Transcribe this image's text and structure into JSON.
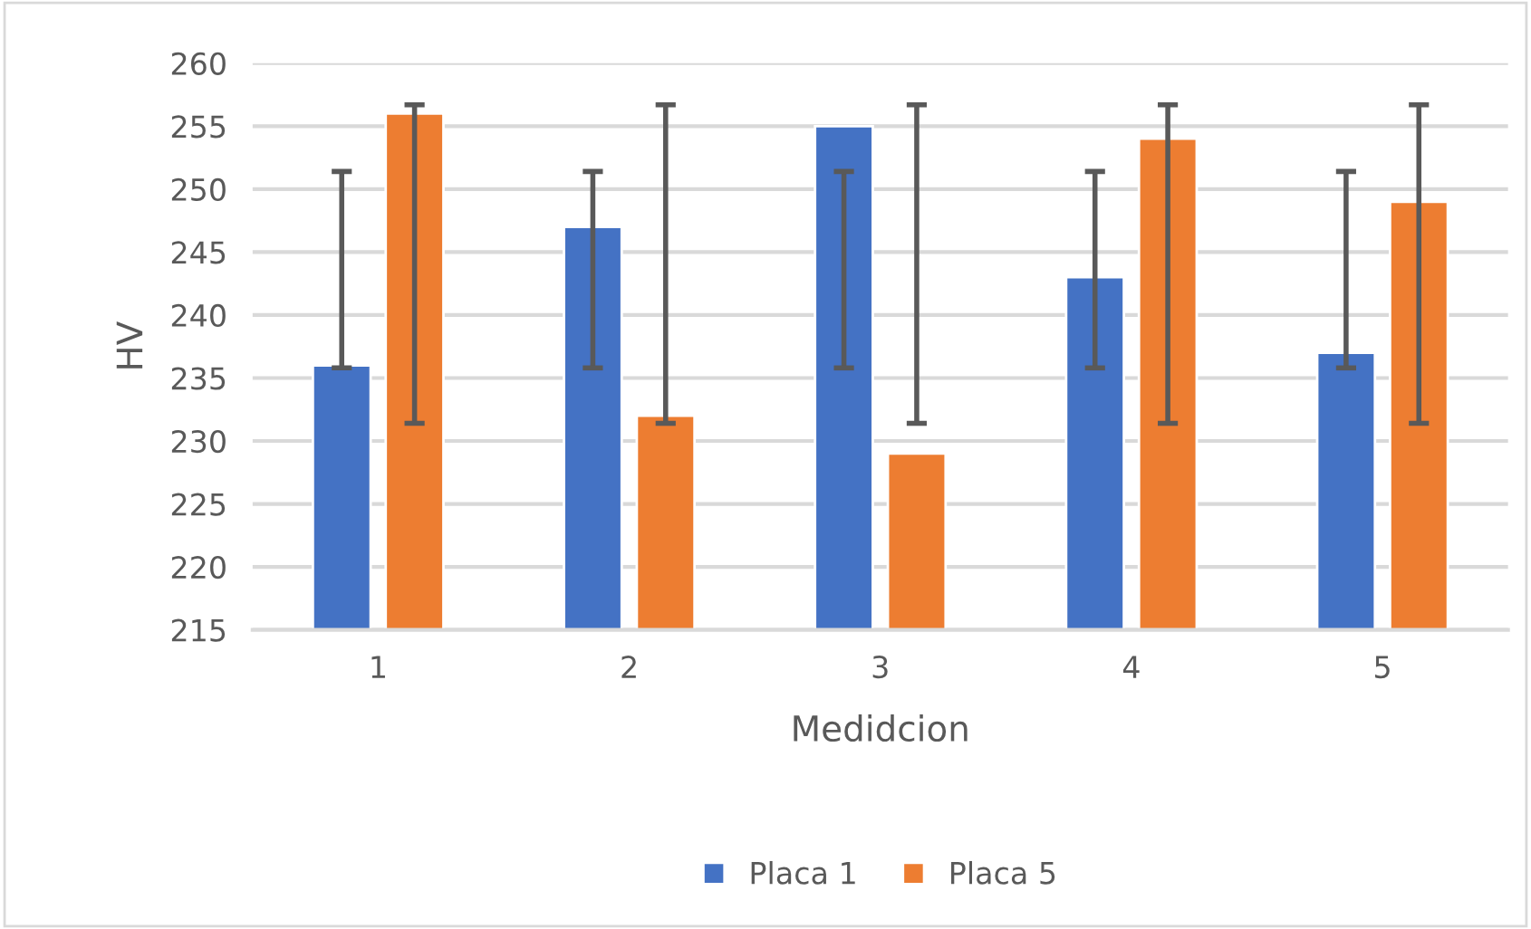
{
  "chart_data": {
    "type": "bar",
    "xlabel": "Medidcion",
    "ylabel": "HV",
    "categories": [
      "1",
      "2",
      "3",
      "4",
      "5"
    ],
    "series": [
      {
        "name": "Placa 1",
        "color": "#4472c4",
        "values": [
          236,
          247,
          255,
          243,
          237
        ],
        "errors": [
          [
            235.8,
            251.4
          ],
          [
            235.8,
            251.4
          ],
          [
            235.8,
            251.4
          ],
          [
            235.8,
            251.4
          ],
          [
            235.8,
            251.4
          ]
        ]
      },
      {
        "name": "Placa 5",
        "color": "#ed7d31",
        "values": [
          256,
          232,
          229,
          254,
          249
        ],
        "errors": [
          [
            231.4,
            256.7
          ],
          [
            231.4,
            256.7
          ],
          [
            231.4,
            256.7
          ],
          [
            231.4,
            256.7
          ],
          [
            231.4,
            256.7
          ]
        ]
      }
    ],
    "ylim": [
      215,
      260
    ],
    "yticks": [
      215,
      220,
      225,
      230,
      235,
      240,
      245,
      250,
      255,
      260
    ],
    "grid": "y",
    "legend": "bottom"
  }
}
